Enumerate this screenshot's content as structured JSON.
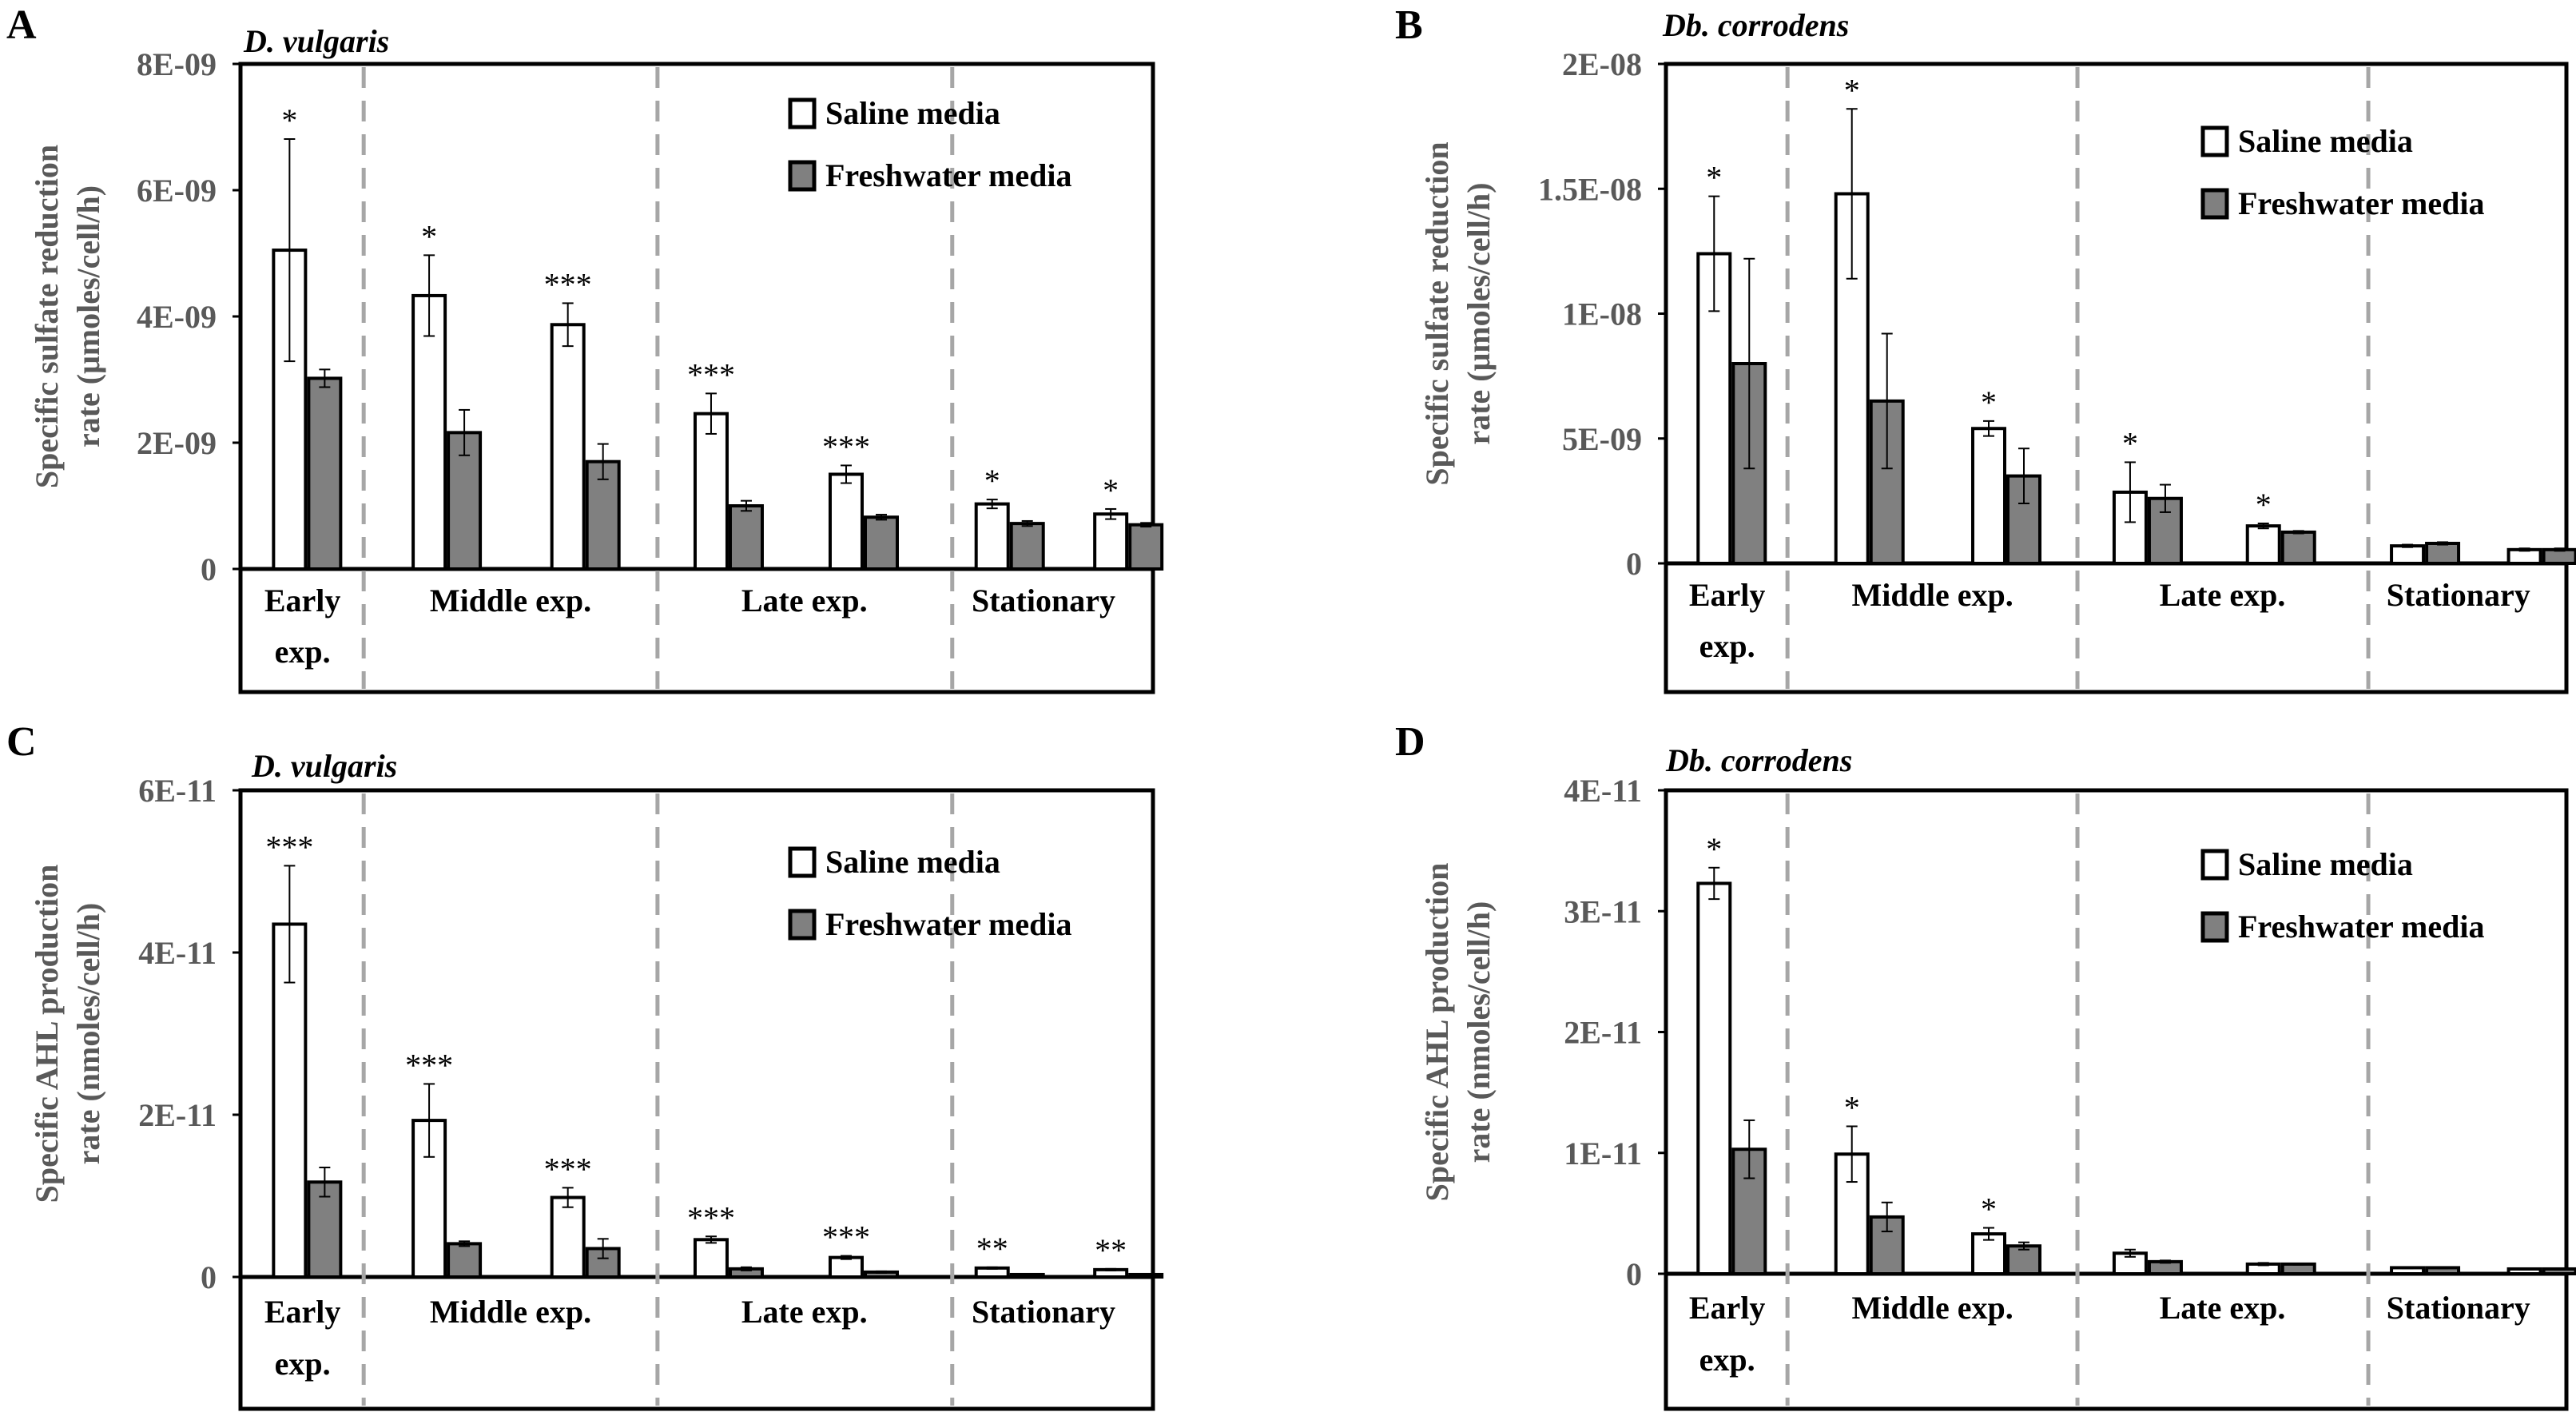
{
  "legend": {
    "saline": "Saline media",
    "freshwater": "Freshwater media"
  },
  "colors": {
    "saline_fill": "#ffffff",
    "freshwater_fill": "#808080",
    "axis": "#000000",
    "tick_text": "#595959",
    "divider": "#a6a6a6",
    "bar_stroke": "#000000"
  },
  "chart_data": [
    {
      "panel": "A",
      "type": "bar",
      "title": "D. vulgaris",
      "ylabel": [
        "Specific sulfate reduction",
        "rate (μmoles/cell/h)"
      ],
      "yticks": [
        0,
        2e-09,
        4e-09,
        6e-09,
        8e-09
      ],
      "yticklabels": [
        "0",
        "2E-09",
        "4E-09",
        "6E-09",
        "8E-09"
      ],
      "ylim": [
        0,
        8e-09
      ],
      "groups": [
        {
          "label": [
            "Early",
            "exp."
          ],
          "n": 1
        },
        {
          "label": [
            "Middle exp."
          ],
          "n": 2
        },
        {
          "label": [
            "Late exp."
          ],
          "n": 2
        },
        {
          "label": [
            "Stationary"
          ],
          "n": 2
        }
      ],
      "series": [
        {
          "name": "Saline media",
          "values": [
            5.05e-09,
            4.33e-09,
            3.87e-09,
            2.46e-09,
            1.5e-09,
            1.03e-09,
            8.7e-10
          ],
          "errors": [
            1.76e-09,
            6.4e-10,
            3.4e-10,
            3.2e-10,
            1.4e-10,
            7e-11,
            8e-11
          ]
        },
        {
          "name": "Freshwater media",
          "values": [
            3.02e-09,
            2.16e-09,
            1.7e-09,
            1e-09,
            8.2e-10,
            7.2e-10,
            7e-10
          ],
          "errors": [
            1.4e-10,
            3.6e-10,
            2.8e-10,
            8e-11,
            4e-11,
            4e-11,
            3e-11
          ]
        }
      ],
      "significance": [
        "*",
        "*",
        "***",
        "***",
        "***",
        "*",
        "*"
      ]
    },
    {
      "panel": "B",
      "type": "bar",
      "title": "Db. corrodens",
      "ylabel": [
        "Specific sulfate reduction",
        "rate (μmoles/cell/h)"
      ],
      "yticks": [
        0,
        5e-09,
        1e-08,
        1.5e-08,
        2e-08
      ],
      "yticklabels": [
        "0",
        "5E-09",
        "1E-08",
        "1.5E-08",
        "2E-08"
      ],
      "ylim": [
        0,
        2e-08
      ],
      "groups": [
        {
          "label": [
            "Early",
            "exp."
          ],
          "n": 1
        },
        {
          "label": [
            "Middle exp."
          ],
          "n": 2
        },
        {
          "label": [
            "Late exp."
          ],
          "n": 2
        },
        {
          "label": [
            "Stationary"
          ],
          "n": 2
        }
      ],
      "series": [
        {
          "name": "Saline media",
          "values": [
            1.24e-08,
            1.48e-08,
            5.4e-09,
            2.85e-09,
            1.5e-09,
            7e-10,
            5.5e-10
          ],
          "errors": [
            2.3e-09,
            3.4e-09,
            3e-10,
            1.2e-09,
            1e-10,
            5e-11,
            5e-11
          ]
        },
        {
          "name": "Freshwater media",
          "values": [
            8e-09,
            6.5e-09,
            3.5e-09,
            2.6e-09,
            1.25e-09,
            8e-10,
            5.5e-10
          ],
          "errors": [
            4.2e-09,
            2.7e-09,
            1.1e-09,
            5.5e-10,
            5e-11,
            5e-11,
            5e-11
          ]
        }
      ],
      "significance": [
        "*",
        "*",
        "*",
        "*",
        "*",
        "",
        ""
      ]
    },
    {
      "panel": "C",
      "type": "bar",
      "title": "D. vulgaris",
      "ylabel": [
        "Specific AHL production",
        "rate (nmoles/cell/h)"
      ],
      "yticks": [
        0,
        2e-11,
        4e-11,
        6e-11
      ],
      "yticklabels": [
        "0",
        "2E-11",
        "4E-11",
        "6E-11"
      ],
      "ylim": [
        0,
        6e-11
      ],
      "groups": [
        {
          "label": [
            "Early",
            "exp."
          ],
          "n": 1
        },
        {
          "label": [
            "Middle exp."
          ],
          "n": 2
        },
        {
          "label": [
            "Late exp."
          ],
          "n": 2
        },
        {
          "label": [
            "Stationary"
          ],
          "n": 2
        }
      ],
      "series": [
        {
          "name": "Saline media",
          "values": [
            4.35e-11,
            1.93e-11,
            9.8e-12,
            4.6e-12,
            2.4e-12,
            1.1e-12,
            9e-13
          ],
          "errors": [
            7.2e-12,
            4.5e-12,
            1.2e-12,
            4e-13,
            2e-13,
            1e-13,
            1e-13
          ]
        },
        {
          "name": "Freshwater media",
          "values": [
            1.17e-11,
            4.1e-12,
            3.5e-12,
            1e-12,
            6e-13,
            3e-13,
            3e-13
          ],
          "errors": [
            1.8e-12,
            3e-13,
            1.2e-12,
            2e-13,
            1e-13,
            5e-14,
            5e-14
          ]
        }
      ],
      "significance": [
        "***",
        "***",
        "***",
        "***",
        "***",
        "**",
        "**"
      ]
    },
    {
      "panel": "D",
      "type": "bar",
      "title": "Db. corrodens",
      "ylabel": [
        "Specific AHL production",
        "rate (nmoles/cell/h)"
      ],
      "yticks": [
        0,
        1e-11,
        2e-11,
        3e-11,
        4e-11
      ],
      "yticklabels": [
        "0",
        "1E-11",
        "2E-11",
        "3E-11",
        "4E-11"
      ],
      "ylim": [
        0,
        4e-11
      ],
      "groups": [
        {
          "label": [
            "Early",
            "exp."
          ],
          "n": 1
        },
        {
          "label": [
            "Middle exp."
          ],
          "n": 2
        },
        {
          "label": [
            "Late exp."
          ],
          "n": 2
        },
        {
          "label": [
            "Stationary"
          ],
          "n": 2
        }
      ],
      "series": [
        {
          "name": "Saline media",
          "values": [
            3.23e-11,
            9.9e-12,
            3.3e-12,
            1.7e-12,
            8e-13,
            5e-13,
            4e-13
          ],
          "errors": [
            1.3e-12,
            2.3e-12,
            5e-13,
            3e-13,
            1e-13,
            5e-14,
            5e-14
          ]
        },
        {
          "name": "Freshwater media",
          "values": [
            1.03e-11,
            4.7e-12,
            2.3e-12,
            1e-12,
            8e-13,
            5e-13,
            4e-13
          ],
          "errors": [
            2.4e-12,
            1.2e-12,
            3e-13,
            1e-13,
            5e-14,
            5e-14,
            5e-14
          ]
        }
      ],
      "significance": [
        "*",
        "*",
        "*",
        "",
        "",
        "",
        ""
      ]
    }
  ]
}
